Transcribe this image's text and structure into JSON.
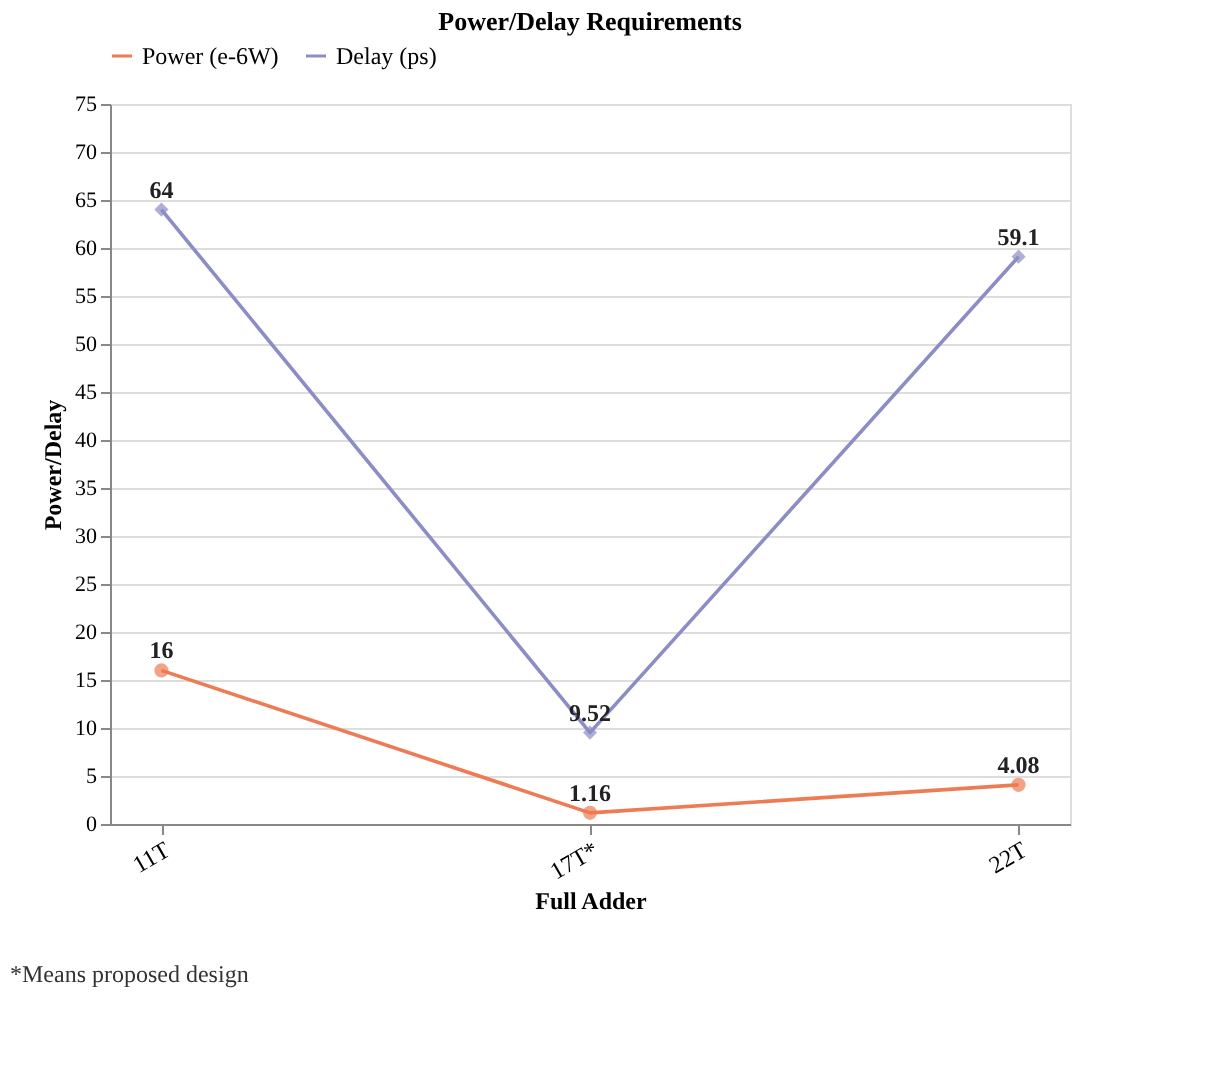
{
  "chart_data": {
    "type": "line",
    "title": "Power/Delay Requirements",
    "xlabel": "Full Adder",
    "ylabel": "Power/Delay",
    "categories": [
      "11T",
      "17T*",
      "22T"
    ],
    "series": [
      {
        "name": "Power (e-6W)",
        "color": "#ee7b52",
        "values": [
          16,
          1.16,
          4.08
        ],
        "marker": "circle"
      },
      {
        "name": "Delay (ps)",
        "color": "#8c8cc8",
        "values": [
          64,
          9.52,
          59.1
        ],
        "marker": "diamond"
      }
    ],
    "ylim": [
      0,
      75
    ],
    "yticks": [
      0,
      5,
      10,
      15,
      20,
      25,
      30,
      35,
      40,
      45,
      50,
      55,
      60,
      65,
      70,
      75
    ],
    "grid": "y",
    "legend": "top left",
    "data_labels": true,
    "annotations": [
      "*Means proposed design"
    ]
  }
}
